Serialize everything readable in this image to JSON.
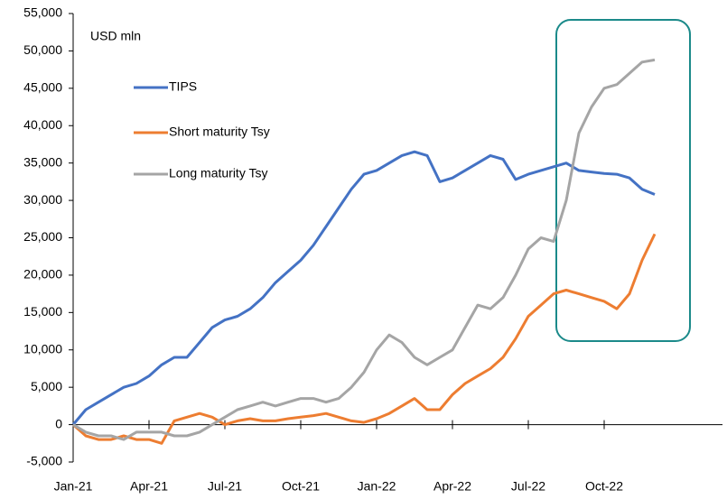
{
  "chart_data": {
    "type": "line",
    "ylabel": "USD mln",
    "categories": [
      "Jan-21",
      null,
      null,
      null,
      null,
      null,
      "Apr-21",
      null,
      null,
      null,
      null,
      null,
      "Jul-21",
      null,
      null,
      null,
      null,
      null,
      "Oct-21",
      null,
      null,
      null,
      null,
      null,
      "Jan-22",
      null,
      null,
      null,
      null,
      null,
      "Apr-22",
      null,
      null,
      null,
      null,
      null,
      "Jul-22",
      null,
      null,
      null,
      null,
      null,
      "Oct-22",
      null,
      null,
      null,
      null,
      null,
      null,
      null,
      null,
      null
    ],
    "ylim": [
      -5000,
      55000
    ],
    "yticks": [
      {
        "value": -5000,
        "label": "-5,000"
      },
      0,
      {
        "value": 5000,
        "label": "5,000"
      },
      {
        "value": 10000,
        "label": "10,000"
      },
      {
        "value": 15000,
        "label": "15,000"
      },
      {
        "value": 20000,
        "label": "20,000"
      },
      {
        "value": 25000,
        "label": "25,000"
      },
      {
        "value": 30000,
        "label": "30,000"
      },
      {
        "value": 35000,
        "label": "35,000"
      },
      {
        "value": 40000,
        "label": "40,000"
      },
      {
        "value": 45000,
        "label": "45,000"
      },
      {
        "value": 50000,
        "label": "50,000"
      },
      {
        "value": 55000,
        "label": "55,000"
      }
    ],
    "grid": false,
    "series": [
      {
        "name": "TIPS",
        "color": "#4472c4",
        "values": [
          0,
          2000,
          3000,
          4000,
          5000,
          5500,
          6500,
          8000,
          9000,
          9000,
          11000,
          13000,
          14000,
          14500,
          15500,
          17000,
          19000,
          20500,
          22000,
          24000,
          26500,
          29000,
          31500,
          33500,
          34000,
          35000,
          36000,
          36500,
          36000,
          32500,
          33000,
          34000,
          35000,
          36000,
          35500,
          32800,
          33500,
          34000,
          34500,
          35000,
          34000,
          33800,
          33600,
          33500,
          33000,
          31500,
          30800,
          null,
          null,
          null,
          null,
          null
        ]
      },
      {
        "name": "Short maturity Tsy",
        "color": "#ed7d31",
        "values": [
          0,
          -1500,
          -2000,
          -2000,
          -1500,
          -2000,
          -2000,
          -2500,
          500,
          1000,
          1500,
          1000,
          0,
          500,
          800,
          500,
          500,
          800,
          1000,
          1200,
          1500,
          1000,
          500,
          300,
          800,
          1500,
          2500,
          3500,
          2000,
          2000,
          4000,
          5500,
          6500,
          7500,
          9000,
          11500,
          14500,
          16000,
          17500,
          18000,
          17500,
          17000,
          16500,
          15500,
          17500,
          22000,
          25500,
          null,
          null,
          null,
          null,
          null
        ]
      },
      {
        "name": "Long maturity Tsy",
        "color": "#a5a5a5",
        "values": [
          0,
          -1000,
          -1500,
          -1500,
          -2000,
          -1000,
          -1000,
          -1000,
          -1500,
          -1500,
          -1000,
          0,
          1000,
          2000,
          2500,
          3000,
          2500,
          3000,
          3500,
          3500,
          3000,
          3500,
          5000,
          7000,
          10000,
          12000,
          11000,
          9000,
          8000,
          9000,
          10000,
          13000,
          16000,
          15500,
          17000,
          20000,
          23500,
          25000,
          24500,
          30000,
          39000,
          42500,
          45000,
          45500,
          47000,
          48500,
          48800,
          null,
          null,
          null,
          null,
          null
        ]
      }
    ]
  }
}
